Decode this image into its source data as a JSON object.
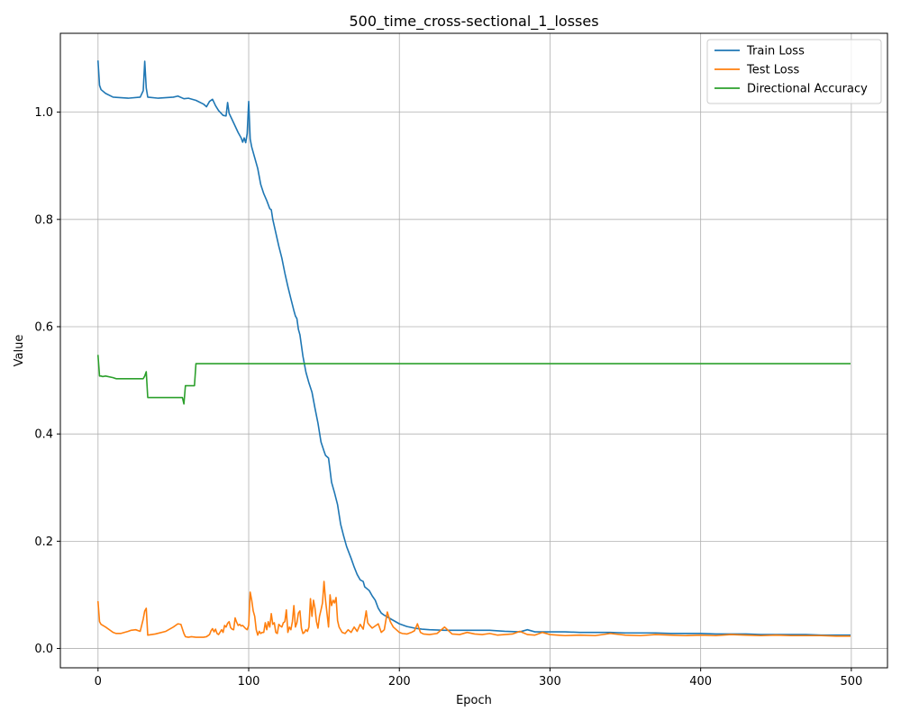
{
  "chart_data": {
    "type": "line",
    "title": "500_time_cross-sectional_1_losses",
    "xlabel": "Epoch",
    "ylabel": "Value",
    "xlim": [
      -25,
      524
    ],
    "ylim": [
      -0.036,
      1.147
    ],
    "xticks": [
      0,
      100,
      200,
      300,
      400,
      500
    ],
    "yticks": [
      0.0,
      0.2,
      0.4,
      0.6,
      0.8,
      1.0
    ],
    "xtick_labels": [
      "0",
      "100",
      "200",
      "300",
      "400",
      "500"
    ],
    "ytick_labels": [
      "0.0",
      "0.2",
      "0.4",
      "0.6",
      "0.8",
      "1.0"
    ],
    "grid": true,
    "legend_position": "top-right",
    "series": [
      {
        "name": "Train Loss",
        "color": "#1f77b4",
        "points": [
          [
            0,
            1.095
          ],
          [
            1,
            1.05
          ],
          [
            2,
            1.042
          ],
          [
            5,
            1.035
          ],
          [
            10,
            1.028
          ],
          [
            20,
            1.026
          ],
          [
            28,
            1.028
          ],
          [
            30,
            1.04
          ],
          [
            31,
            1.095
          ],
          [
            32,
            1.045
          ],
          [
            33,
            1.028
          ],
          [
            40,
            1.026
          ],
          [
            50,
            1.028
          ],
          [
            53,
            1.03
          ],
          [
            57,
            1.025
          ],
          [
            60,
            1.026
          ],
          [
            65,
            1.022
          ],
          [
            70,
            1.015
          ],
          [
            72,
            1.01
          ],
          [
            74,
            1.02
          ],
          [
            76,
            1.024
          ],
          [
            78,
            1.012
          ],
          [
            80,
            1.003
          ],
          [
            83,
            0.994
          ],
          [
            85,
            0.993
          ],
          [
            86,
            1.018
          ],
          [
            87,
            0.998
          ],
          [
            90,
            0.98
          ],
          [
            93,
            0.962
          ],
          [
            95,
            0.952
          ],
          [
            96,
            0.944
          ],
          [
            97,
            0.952
          ],
          [
            98,
            0.943
          ],
          [
            99,
            0.96
          ],
          [
            100,
            1.02
          ],
          [
            101,
            0.95
          ],
          [
            102,
            0.935
          ],
          [
            104,
            0.915
          ],
          [
            106,
            0.895
          ],
          [
            108,
            0.865
          ],
          [
            110,
            0.848
          ],
          [
            112,
            0.835
          ],
          [
            114,
            0.82
          ],
          [
            115,
            0.818
          ],
          [
            116,
            0.8
          ],
          [
            118,
            0.775
          ],
          [
            120,
            0.75
          ],
          [
            122,
            0.728
          ],
          [
            124,
            0.7
          ],
          [
            126,
            0.675
          ],
          [
            128,
            0.652
          ],
          [
            130,
            0.63
          ],
          [
            131,
            0.62
          ],
          [
            132,
            0.615
          ],
          [
            133,
            0.595
          ],
          [
            134,
            0.585
          ],
          [
            136,
            0.545
          ],
          [
            138,
            0.515
          ],
          [
            140,
            0.495
          ],
          [
            142,
            0.478
          ],
          [
            144,
            0.448
          ],
          [
            146,
            0.42
          ],
          [
            148,
            0.385
          ],
          [
            150,
            0.368
          ],
          [
            151,
            0.36
          ],
          [
            153,
            0.355
          ],
          [
            155,
            0.31
          ],
          [
            157,
            0.29
          ],
          [
            159,
            0.268
          ],
          [
            161,
            0.232
          ],
          [
            163,
            0.21
          ],
          [
            165,
            0.19
          ],
          [
            168,
            0.168
          ],
          [
            170,
            0.152
          ],
          [
            172,
            0.138
          ],
          [
            174,
            0.128
          ],
          [
            176,
            0.125
          ],
          [
            177,
            0.115
          ],
          [
            180,
            0.108
          ],
          [
            182,
            0.098
          ],
          [
            184,
            0.09
          ],
          [
            186,
            0.075
          ],
          [
            188,
            0.066
          ],
          [
            190,
            0.062
          ],
          [
            195,
            0.054
          ],
          [
            200,
            0.046
          ],
          [
            205,
            0.041
          ],
          [
            210,
            0.038
          ],
          [
            215,
            0.036
          ],
          [
            220,
            0.035
          ],
          [
            230,
            0.034
          ],
          [
            240,
            0.034
          ],
          [
            250,
            0.034
          ],
          [
            260,
            0.034
          ],
          [
            270,
            0.032
          ],
          [
            280,
            0.031
          ],
          [
            285,
            0.035
          ],
          [
            290,
            0.031
          ],
          [
            300,
            0.031
          ],
          [
            310,
            0.031
          ],
          [
            320,
            0.03
          ],
          [
            330,
            0.03
          ],
          [
            340,
            0.03
          ],
          [
            350,
            0.029
          ],
          [
            360,
            0.029
          ],
          [
            370,
            0.029
          ],
          [
            380,
            0.028
          ],
          [
            390,
            0.028
          ],
          [
            400,
            0.028
          ],
          [
            410,
            0.027
          ],
          [
            420,
            0.027
          ],
          [
            430,
            0.027
          ],
          [
            440,
            0.026
          ],
          [
            450,
            0.026
          ],
          [
            460,
            0.026
          ],
          [
            470,
            0.026
          ],
          [
            480,
            0.025
          ],
          [
            490,
            0.025
          ],
          [
            499,
            0.025
          ]
        ]
      },
      {
        "name": "Test Loss",
        "color": "#ff7f0e",
        "points": [
          [
            0,
            0.087
          ],
          [
            1,
            0.05
          ],
          [
            2,
            0.045
          ],
          [
            5,
            0.04
          ],
          [
            8,
            0.034
          ],
          [
            10,
            0.03
          ],
          [
            12,
            0.028
          ],
          [
            15,
            0.028
          ],
          [
            20,
            0.032
          ],
          [
            22,
            0.034
          ],
          [
            25,
            0.035
          ],
          [
            28,
            0.032
          ],
          [
            30,
            0.055
          ],
          [
            31,
            0.07
          ],
          [
            32,
            0.075
          ],
          [
            33,
            0.025
          ],
          [
            38,
            0.027
          ],
          [
            45,
            0.032
          ],
          [
            50,
            0.04
          ],
          [
            53,
            0.046
          ],
          [
            55,
            0.045
          ],
          [
            57,
            0.028
          ],
          [
            58,
            0.022
          ],
          [
            60,
            0.021
          ],
          [
            62,
            0.022
          ],
          [
            65,
            0.021
          ],
          [
            68,
            0.021
          ],
          [
            70,
            0.021
          ],
          [
            72,
            0.022
          ],
          [
            74,
            0.026
          ],
          [
            75,
            0.033
          ],
          [
            76,
            0.037
          ],
          [
            77,
            0.031
          ],
          [
            78,
            0.036
          ],
          [
            79,
            0.028
          ],
          [
            80,
            0.026
          ],
          [
            82,
            0.035
          ],
          [
            83,
            0.03
          ],
          [
            84,
            0.043
          ],
          [
            85,
            0.04
          ],
          [
            86,
            0.047
          ],
          [
            87,
            0.05
          ],
          [
            88,
            0.039
          ],
          [
            89,
            0.036
          ],
          [
            90,
            0.035
          ],
          [
            91,
            0.057
          ],
          [
            92,
            0.049
          ],
          [
            93,
            0.043
          ],
          [
            94,
            0.045
          ],
          [
            95,
            0.042
          ],
          [
            96,
            0.043
          ],
          [
            97,
            0.04
          ],
          [
            98,
            0.037
          ],
          [
            99,
            0.035
          ],
          [
            100,
            0.043
          ],
          [
            101,
            0.105
          ],
          [
            102,
            0.09
          ],
          [
            103,
            0.07
          ],
          [
            104,
            0.06
          ],
          [
            105,
            0.035
          ],
          [
            106,
            0.025
          ],
          [
            107,
            0.032
          ],
          [
            108,
            0.028
          ],
          [
            109,
            0.03
          ],
          [
            110,
            0.03
          ],
          [
            111,
            0.048
          ],
          [
            112,
            0.035
          ],
          [
            113,
            0.05
          ],
          [
            114,
            0.04
          ],
          [
            115,
            0.065
          ],
          [
            116,
            0.045
          ],
          [
            117,
            0.048
          ],
          [
            118,
            0.03
          ],
          [
            119,
            0.028
          ],
          [
            120,
            0.045
          ],
          [
            121,
            0.042
          ],
          [
            122,
            0.04
          ],
          [
            123,
            0.048
          ],
          [
            124,
            0.05
          ],
          [
            125,
            0.072
          ],
          [
            126,
            0.03
          ],
          [
            127,
            0.04
          ],
          [
            128,
            0.035
          ],
          [
            129,
            0.05
          ],
          [
            130,
            0.08
          ],
          [
            131,
            0.04
          ],
          [
            132,
            0.048
          ],
          [
            133,
            0.066
          ],
          [
            134,
            0.07
          ],
          [
            135,
            0.038
          ],
          [
            136,
            0.028
          ],
          [
            137,
            0.03
          ],
          [
            138,
            0.035
          ],
          [
            139,
            0.032
          ],
          [
            140,
            0.04
          ],
          [
            141,
            0.093
          ],
          [
            142,
            0.06
          ],
          [
            143,
            0.09
          ],
          [
            144,
            0.075
          ],
          [
            145,
            0.05
          ],
          [
            146,
            0.038
          ],
          [
            147,
            0.06
          ],
          [
            148,
            0.072
          ],
          [
            149,
            0.085
          ],
          [
            150,
            0.125
          ],
          [
            151,
            0.09
          ],
          [
            152,
            0.065
          ],
          [
            153,
            0.04
          ],
          [
            154,
            0.1
          ],
          [
            155,
            0.08
          ],
          [
            156,
            0.09
          ],
          [
            157,
            0.085
          ],
          [
            158,
            0.095
          ],
          [
            159,
            0.052
          ],
          [
            160,
            0.04
          ],
          [
            162,
            0.03
          ],
          [
            164,
            0.028
          ],
          [
            166,
            0.035
          ],
          [
            168,
            0.03
          ],
          [
            170,
            0.04
          ],
          [
            172,
            0.032
          ],
          [
            174,
            0.045
          ],
          [
            176,
            0.036
          ],
          [
            178,
            0.07
          ],
          [
            179,
            0.048
          ],
          [
            180,
            0.044
          ],
          [
            182,
            0.038
          ],
          [
            184,
            0.042
          ],
          [
            186,
            0.046
          ],
          [
            188,
            0.03
          ],
          [
            190,
            0.035
          ],
          [
            192,
            0.068
          ],
          [
            194,
            0.05
          ],
          [
            196,
            0.04
          ],
          [
            198,
            0.035
          ],
          [
            200,
            0.03
          ],
          [
            202,
            0.028
          ],
          [
            205,
            0.027
          ],
          [
            208,
            0.03
          ],
          [
            210,
            0.033
          ],
          [
            212,
            0.046
          ],
          [
            214,
            0.03
          ],
          [
            216,
            0.027
          ],
          [
            220,
            0.026
          ],
          [
            225,
            0.028
          ],
          [
            230,
            0.04
          ],
          [
            235,
            0.027
          ],
          [
            240,
            0.026
          ],
          [
            245,
            0.03
          ],
          [
            250,
            0.027
          ],
          [
            255,
            0.026
          ],
          [
            260,
            0.028
          ],
          [
            265,
            0.025
          ],
          [
            270,
            0.026
          ],
          [
            275,
            0.027
          ],
          [
            280,
            0.032
          ],
          [
            285,
            0.026
          ],
          [
            290,
            0.025
          ],
          [
            295,
            0.03
          ],
          [
            300,
            0.026
          ],
          [
            305,
            0.025
          ],
          [
            310,
            0.024
          ],
          [
            320,
            0.025
          ],
          [
            330,
            0.024
          ],
          [
            340,
            0.028
          ],
          [
            350,
            0.025
          ],
          [
            360,
            0.024
          ],
          [
            370,
            0.026
          ],
          [
            380,
            0.025
          ],
          [
            390,
            0.024
          ],
          [
            400,
            0.025
          ],
          [
            410,
            0.024
          ],
          [
            420,
            0.026
          ],
          [
            430,
            0.025
          ],
          [
            440,
            0.024
          ],
          [
            450,
            0.025
          ],
          [
            460,
            0.024
          ],
          [
            470,
            0.024
          ],
          [
            480,
            0.024
          ],
          [
            490,
            0.023
          ],
          [
            499,
            0.023
          ]
        ]
      },
      {
        "name": "Directional Accuracy",
        "color": "#2ca02c",
        "points": [
          [
            0,
            0.546
          ],
          [
            1,
            0.508
          ],
          [
            2,
            0.508
          ],
          [
            3,
            0.507
          ],
          [
            5,
            0.508
          ],
          [
            10,
            0.505
          ],
          [
            12,
            0.503
          ],
          [
            30,
            0.503
          ],
          [
            31,
            0.508
          ],
          [
            32,
            0.516
          ],
          [
            33,
            0.468
          ],
          [
            56,
            0.468
          ],
          [
            57,
            0.456
          ],
          [
            58,
            0.49
          ],
          [
            64,
            0.49
          ],
          [
            65,
            0.531
          ],
          [
            499,
            0.531
          ]
        ]
      }
    ]
  }
}
